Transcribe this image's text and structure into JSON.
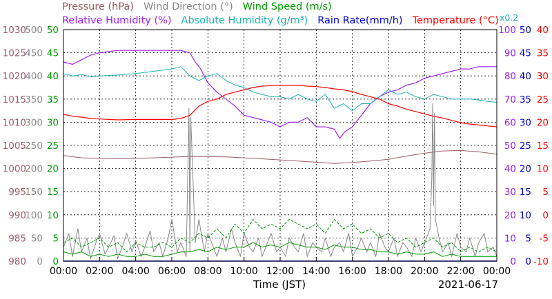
{
  "chart_data": {
    "type": "line",
    "date": "2021-06-17",
    "xlabel": "Time (JST)",
    "x_ticks": [
      "00:00",
      "02:00",
      "04:00",
      "06:00",
      "08:00",
      "10:00",
      "12:00",
      "14:00",
      "16:00",
      "18:00",
      "20:00",
      "22:00",
      "00:00"
    ],
    "grid": true,
    "legend_row1": [
      {
        "label": "Pressure (hPa)",
        "color": "#9b5a64"
      },
      {
        "label": "Wind Direction (°)",
        "color": "#888888"
      },
      {
        "label": "Wind Speed (m/s)",
        "color": "#009a00"
      }
    ],
    "legend_row2": [
      {
        "label": "Relative Humidity (%)",
        "color": "#a020f0"
      },
      {
        "label": "Absolute Humidity (g/m³)",
        "color": "#1ab2b2"
      },
      {
        "label": "Rain Rate(mm/h)",
        "color": "#0000cc"
      },
      {
        "label": "Temperature (°C)",
        "color": "#ff0000"
      }
    ],
    "axes": {
      "pressure": {
        "label": "Pressure (hPa)",
        "color": "#9b5a64",
        "ylim": [
          980,
          1030
        ],
        "ticks": [
          "980",
          "985",
          "990",
          "995",
          "1000",
          "1005",
          "1010",
          "1015",
          "1020",
          "1025",
          "1030"
        ]
      },
      "wind_direction": {
        "label": "Wind Direction (°)",
        "color": "#888888",
        "ylim": [
          0,
          500
        ],
        "ticks": [
          "0",
          "50",
          "100",
          "150",
          "200",
          "250",
          "300",
          "350",
          "400",
          "450",
          "500"
        ]
      },
      "wind_speed": {
        "label": "Wind Speed (m/s)",
        "color": "#009a00",
        "ylim": [
          0,
          50
        ],
        "ticks": [
          "0",
          "5",
          "10",
          "15",
          "20",
          "25",
          "30",
          "35",
          "40",
          "45",
          "50"
        ]
      },
      "humidity": {
        "label": "Relative Humidity (%)",
        "color": "#a020f0",
        "ylim": [
          0,
          100
        ],
        "ticks": [
          "0",
          "10",
          "20",
          "30",
          "40",
          "50",
          "60",
          "70",
          "80",
          "90",
          "100"
        ]
      },
      "rain": {
        "label": "Rain Rate(mm/h)",
        "color": "#0000cc",
        "ylim": [
          0,
          50
        ],
        "ticks": [
          "0",
          "5",
          "10",
          "15",
          "20",
          "25",
          "30",
          "35",
          "40",
          "45",
          "50"
        ],
        "multiplier": "x0.2"
      },
      "temperature": {
        "label": "Temperature (°C)",
        "color": "#ff0000",
        "ylim": [
          -10,
          40
        ],
        "ticks": [
          "-10",
          "-5",
          "0",
          "5",
          "10",
          "15",
          "20",
          "25",
          "30",
          "35",
          "40"
        ]
      }
    },
    "series": [
      {
        "name": "Pressure (hPa)",
        "axis": "pressure",
        "color": "#9b5a64",
        "width": 1.0,
        "x": [
          0,
          1,
          3,
          5,
          7,
          9,
          11,
          13,
          15,
          16,
          17,
          18,
          19,
          20,
          21,
          22,
          23,
          24
        ],
        "y": [
          1002.8,
          1002.3,
          1002.1,
          1002.3,
          1002.6,
          1002.5,
          1002.1,
          1001.6,
          1001.1,
          1001.3,
          1001.6,
          1002.0,
          1002.7,
          1003.3,
          1003.8,
          1003.9,
          1003.6,
          1003.1
        ]
      },
      {
        "name": "Wind Direction (°)",
        "axis": "wind_direction",
        "color": "#888888",
        "width": 1.0,
        "x": [
          0,
          0.3,
          0.5,
          0.8,
          1.0,
          1.3,
          1.5,
          1.8,
          2.0,
          2.3,
          2.5,
          2.8,
          3.0,
          3.3,
          3.5,
          3.8,
          4.0,
          4.3,
          4.5,
          4.8,
          5.0,
          5.3,
          5.5,
          5.8,
          6.0,
          6.3,
          6.5,
          6.8,
          6.95,
          7.0,
          7.05,
          7.3,
          7.5,
          7.8,
          8.0,
          8.3,
          8.5,
          8.8,
          9.0,
          9.3,
          9.5,
          9.8,
          10.0,
          10.3,
          10.5,
          10.8,
          11.0,
          11.3,
          11.5,
          11.8,
          12.0,
          12.3,
          12.5,
          12.8,
          13.0,
          13.3,
          13.5,
          13.8,
          14.0,
          14.3,
          14.5,
          14.8,
          15.0,
          15.3,
          15.5,
          15.8,
          16.0,
          16.3,
          16.5,
          16.8,
          17.0,
          17.3,
          17.5,
          17.8,
          18.0,
          18.3,
          18.5,
          18.8,
          19.0,
          19.3,
          19.5,
          19.8,
          20.0,
          20.3,
          20.4,
          20.45,
          20.5,
          20.55,
          20.6,
          20.8,
          21.0,
          21.3,
          21.5,
          21.8,
          22.0,
          22.3,
          22.5,
          22.8,
          23.0,
          23.3,
          23.5,
          23.8,
          24.0
        ],
        "y": [
          30,
          60,
          10,
          70,
          20,
          50,
          5,
          40,
          60,
          15,
          30,
          55,
          5,
          35,
          60,
          20,
          45,
          10,
          30,
          65,
          20,
          40,
          10,
          50,
          90,
          20,
          40,
          10,
          330,
          20,
          310,
          40,
          90,
          20,
          60,
          30,
          10,
          50,
          20,
          70,
          40,
          10,
          60,
          30,
          20,
          50,
          10,
          40,
          60,
          20,
          30,
          10,
          50,
          30,
          20,
          60,
          10,
          40,
          30,
          20,
          50,
          10,
          30,
          40,
          20,
          60,
          10,
          30,
          50,
          20,
          40,
          10,
          60,
          30,
          20,
          50,
          10,
          40,
          30,
          10,
          50,
          20,
          40,
          70,
          180,
          340,
          120,
          320,
          90,
          50,
          20,
          40,
          10,
          60,
          30,
          20,
          50,
          10,
          40,
          60,
          20,
          30,
          10
        ]
      },
      {
        "name": "Wind Speed max (m/s)",
        "axis": "wind_speed",
        "color": "#009a00",
        "width": 1.0,
        "dash": "4,2",
        "x": [
          0,
          0.5,
          1,
          1.5,
          2,
          2.5,
          3,
          3.5,
          4,
          4.5,
          5,
          5.5,
          6,
          6.5,
          7,
          7.5,
          8,
          8.5,
          9,
          9.5,
          10,
          10.5,
          11,
          11.5,
          12,
          12.5,
          13,
          13.5,
          14,
          14.5,
          15,
          15.5,
          16,
          16.5,
          17,
          17.5,
          18,
          18.5,
          19,
          19.5,
          20,
          20.5,
          21,
          21.5,
          22,
          22.5,
          23,
          23.5,
          24
        ],
        "y": [
          4,
          5,
          3,
          4,
          5,
          3,
          4,
          2,
          4,
          3,
          3,
          4,
          3,
          5,
          4,
          6,
          5,
          7,
          5,
          8,
          6,
          9,
          7,
          8,
          7,
          9,
          8,
          7,
          8,
          6,
          9,
          7,
          8,
          6,
          7,
          5,
          6,
          4,
          5,
          3,
          4,
          5,
          3,
          4,
          2,
          3,
          2,
          3,
          2
        ]
      },
      {
        "name": "Wind Speed (m/s)",
        "axis": "wind_speed",
        "color": "#009a00",
        "width": 1.0,
        "x": [
          0,
          0.5,
          1,
          1.5,
          2,
          2.5,
          3,
          3.5,
          4,
          4.5,
          5,
          5.5,
          6,
          6.5,
          7,
          7.5,
          8,
          8.5,
          9,
          9.5,
          10,
          10.5,
          11,
          11.5,
          12,
          12.5,
          13,
          13.5,
          14,
          14.5,
          15,
          15.5,
          16,
          16.5,
          17,
          17.5,
          18,
          18.5,
          19,
          19.5,
          20,
          20.5,
          21,
          21.5,
          22,
          22.5,
          23,
          23.5,
          24
        ],
        "y": [
          2,
          1.5,
          2,
          1,
          1.5,
          1,
          1.5,
          1,
          1,
          1.5,
          1,
          1,
          1.5,
          2,
          2,
          2.5,
          2,
          3,
          2.5,
          3,
          3,
          4,
          3,
          3.5,
          3,
          4,
          3.5,
          3,
          3,
          2.5,
          3.5,
          3,
          3,
          2.5,
          2.5,
          2,
          2,
          1.5,
          2,
          1.5,
          1.5,
          2,
          1,
          1.5,
          1,
          1,
          1,
          1,
          1
        ]
      },
      {
        "name": "Relative Humidity (%)",
        "axis": "humidity",
        "color": "#a020f0",
        "width": 1.2,
        "x": [
          0,
          0.5,
          1,
          1.5,
          2,
          3,
          4,
          5,
          6,
          6.5,
          7,
          7.3,
          7.6,
          8,
          8.5,
          9,
          9.5,
          10,
          10.5,
          11,
          11.5,
          12,
          12.5,
          13,
          13.5,
          14,
          14.5,
          15,
          15.3,
          15.6,
          16,
          16.5,
          17,
          17.5,
          18,
          18.5,
          19,
          19.5,
          20,
          20.5,
          21,
          21.5,
          22,
          22.5,
          23,
          23.5,
          24
        ],
        "y": [
          86,
          85,
          87,
          89,
          90,
          91,
          91,
          91,
          91,
          91,
          90,
          86,
          83,
          77,
          73,
          70,
          67,
          63,
          62,
          61,
          60,
          58,
          60,
          60,
          62,
          58,
          58,
          57,
          53,
          56,
          58,
          63,
          68,
          71,
          73,
          74,
          76,
          77,
          79,
          80,
          81,
          82,
          83,
          83,
          84,
          84,
          84
        ]
      },
      {
        "name": "Absolute Humidity (g/m³)",
        "axis": "wind_speed",
        "color": "#1ab2b2",
        "width": 1.0,
        "x": [
          0,
          0.5,
          1,
          1.5,
          2,
          3,
          4,
          5,
          6,
          6.5,
          7,
          7.5,
          8,
          8.5,
          9,
          9.5,
          10,
          10.5,
          11,
          11.5,
          12,
          12.5,
          13,
          13.5,
          14,
          14.5,
          15,
          15.5,
          16,
          16.5,
          17,
          17.5,
          18,
          18.5,
          19,
          19.5,
          20,
          20.5,
          21,
          21.5,
          22,
          22.5,
          23,
          23.5,
          24
        ],
        "y": [
          40.5,
          40,
          40.3,
          39.8,
          40,
          40.2,
          40.5,
          41,
          41.5,
          42,
          40,
          39,
          40,
          40.5,
          39,
          38,
          37.5,
          36.5,
          36,
          35.5,
          35.5,
          35,
          36,
          35,
          34.5,
          36,
          33,
          34,
          32.5,
          34,
          34,
          35.5,
          37,
          36,
          36.5,
          35.5,
          35,
          36,
          35.5,
          35,
          35,
          35,
          34.8,
          34.5,
          34.3
        ]
      },
      {
        "name": "Rain Rate(mm/h)",
        "axis": "rain",
        "color": "#0000cc",
        "width": 1.5,
        "x": [
          0,
          24
        ],
        "y": [
          0,
          0
        ]
      },
      {
        "name": "Temperature (°C)",
        "axis": "temperature",
        "color": "#ff0000",
        "width": 1.2,
        "x": [
          0,
          0.5,
          1,
          1.5,
          2,
          3,
          4,
          5,
          6,
          6.5,
          7,
          7.5,
          8,
          8.5,
          9,
          9.5,
          10,
          10.5,
          11,
          11.5,
          12,
          12.5,
          13,
          13.5,
          14,
          14.5,
          15,
          15.5,
          16,
          16.5,
          17,
          17.5,
          18,
          18.5,
          19,
          19.5,
          20,
          20.5,
          21,
          21.5,
          22,
          22.5,
          23,
          23.5,
          24
        ],
        "y": [
          21.7,
          21.3,
          21.1,
          20.8,
          20.7,
          20.5,
          20.6,
          20.6,
          20.6,
          20.8,
          21.5,
          23.5,
          24.5,
          25,
          26,
          26.5,
          27,
          27.5,
          27.8,
          27.9,
          28,
          27.9,
          28,
          27.8,
          27.7,
          27.5,
          27.2,
          27,
          26.6,
          26,
          25.5,
          25,
          24,
          23.5,
          22.8,
          22.3,
          21.8,
          21.3,
          20.9,
          20.4,
          19.9,
          19.6,
          19.4,
          19.2,
          19
        ]
      }
    ]
  }
}
